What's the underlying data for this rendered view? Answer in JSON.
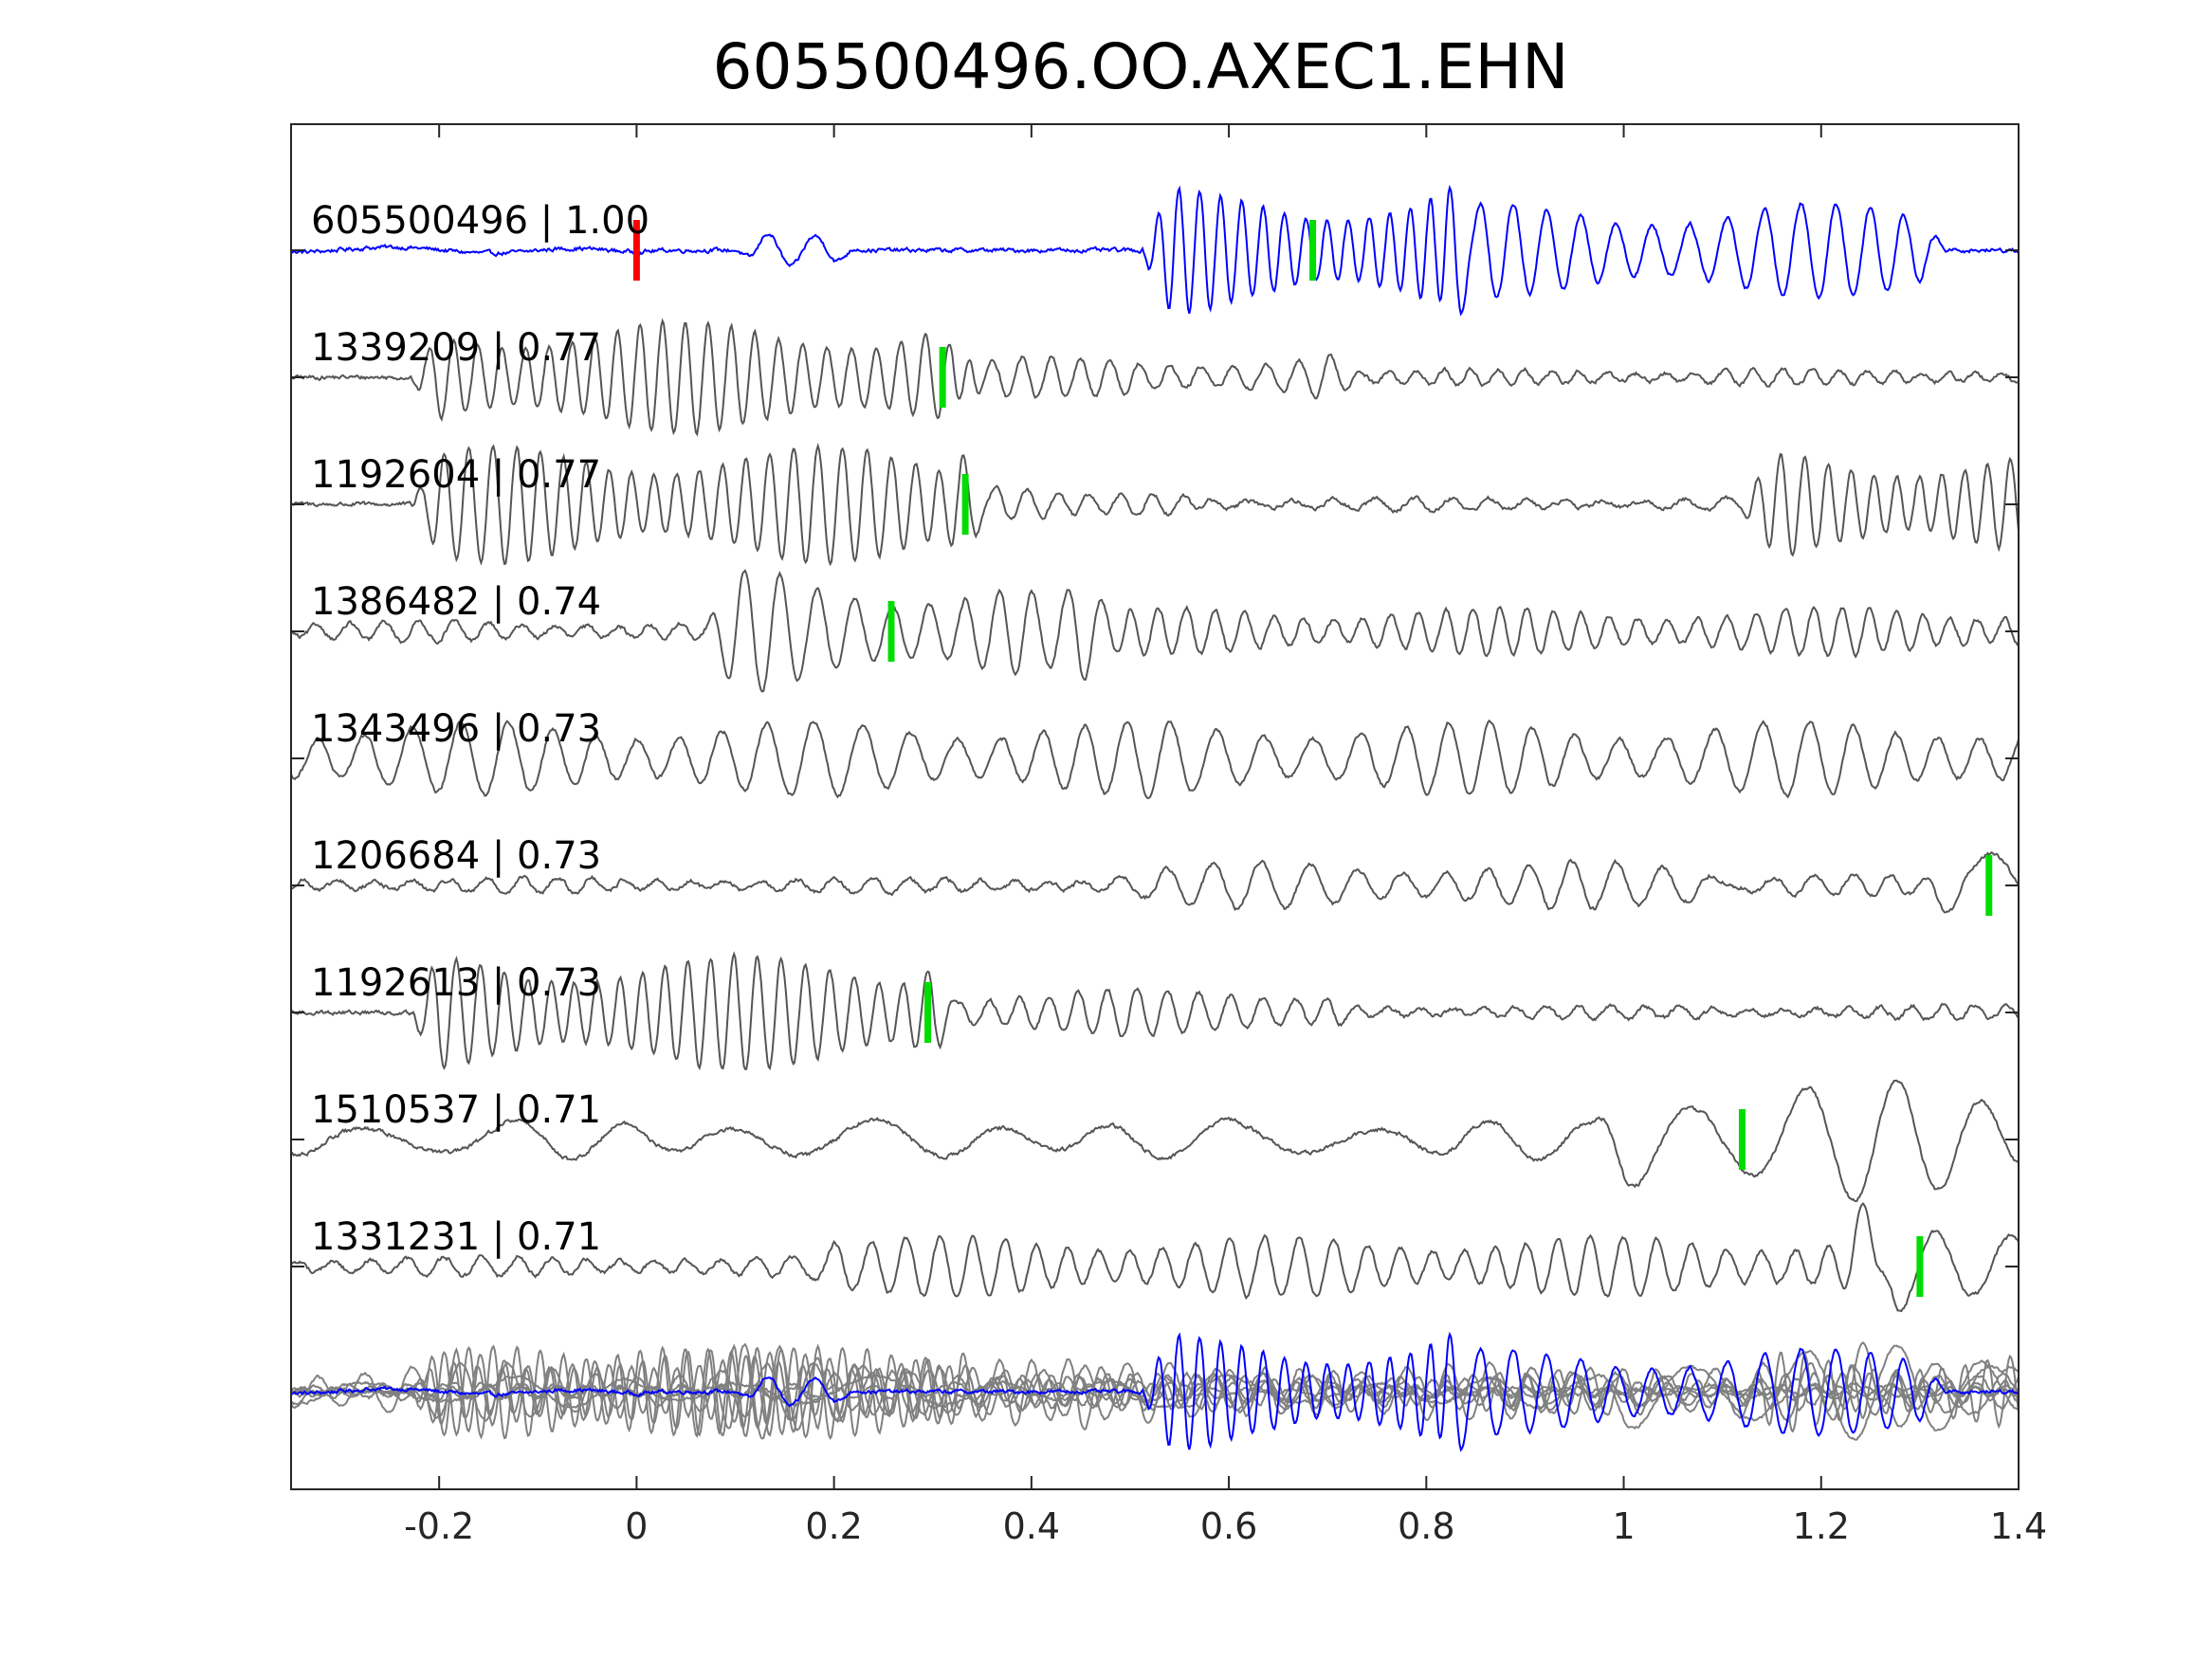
{
  "chart_data": {
    "type": "line",
    "title": "605500496.OO.AXEC1.EHN",
    "xlabel": "",
    "ylabel": "",
    "xlim": [
      -0.35,
      1.4
    ],
    "x_ticks": [
      -0.2,
      0,
      0.2,
      0.4,
      0.6,
      0.8,
      1,
      1.2,
      1.4
    ],
    "x_tick_labels": [
      "-0.2",
      "0",
      "0.2",
      "0.4",
      "0.6",
      "0.8",
      "1",
      "1.2",
      "1.4"
    ],
    "grid": false,
    "colors": {
      "template": "#0000ff",
      "match": "#555555",
      "stack": "#808080",
      "pick_p": "#ff0000",
      "pick_s": "#00dd00"
    },
    "series": [
      {
        "name": "605500496 | 1.00",
        "color": "#0000ff",
        "picks": [
          {
            "t": 0.0,
            "color": "#ff0000"
          },
          {
            "t": 0.685,
            "color": "#00dd00"
          }
        ],
        "segments": [
          [
            -0.35,
            0.0,
            0.05,
            0,
            6
          ],
          [
            0.13,
            0.2,
            0.25,
            50,
            22
          ],
          [
            0.54,
            0.82,
            0.9,
            350,
            48
          ],
          [
            0.84,
            1.3,
            0.7,
            1050,
            28
          ]
        ]
      },
      {
        "name": "1339209 | 0.77",
        "color": "#555555",
        "picks": [
          {
            "t": 0.31,
            "color": "#00dd00"
          }
        ],
        "segments": [
          [
            -0.2,
            0.32,
            0.82,
            200,
            42
          ],
          [
            0.31,
            0.7,
            0.3,
            1050,
            32
          ],
          [
            0.7,
            1.4,
            0.12,
            1500,
            35
          ]
        ]
      },
      {
        "name": "1192604 | 0.77",
        "color": "#555555",
        "picks": [
          {
            "t": 0.333,
            "color": "#00dd00"
          }
        ],
        "segments": [
          [
            -0.2,
            0.33,
            0.85,
            200,
            42
          ],
          [
            0.33,
            0.55,
            0.3,
            1050,
            30
          ],
          [
            0.55,
            1.15,
            0.1,
            1500,
            25
          ],
          [
            1.15,
            1.4,
            0.8,
            200,
            42
          ]
        ]
      },
      {
        "name": "1386482 | 0.74",
        "color": "#555555",
        "picks": [
          {
            "t": 0.258,
            "color": "#00dd00"
          }
        ],
        "segments": [
          [
            -0.35,
            0.15,
            0.15,
            900,
            30
          ],
          [
            0.1,
            0.45,
            0.75,
            550,
            28
          ],
          [
            0.4,
            1.4,
            0.35,
            1050,
            35
          ]
        ]
      },
      {
        "name": "1343496 | 0.73",
        "color": "#555555",
        "picks": [],
        "segments": [
          [
            -0.35,
            1.4,
            0.55,
            350,
            22
          ]
        ]
      },
      {
        "name": "1206684 | 0.73",
        "color": "#555555",
        "picks": [
          {
            "t": 1.37,
            "color": "#00dd00"
          }
        ],
        "segments": [
          [
            -0.35,
            0.5,
            0.12,
            1500,
            28
          ],
          [
            0.5,
            1.1,
            0.35,
            800,
            22
          ],
          [
            1.1,
            1.34,
            0.15,
            1000,
            25
          ],
          [
            1.34,
            1.4,
            0.9,
            650,
            8
          ]
        ]
      },
      {
        "name": "1192613 | 0.73",
        "color": "#555555",
        "picks": [
          {
            "t": 0.295,
            "color": "#00dd00"
          }
        ],
        "segments": [
          [
            -0.2,
            0.3,
            0.85,
            200,
            42
          ],
          [
            0.3,
            0.7,
            0.35,
            1050,
            32
          ],
          [
            0.7,
            1.4,
            0.1,
            1500,
            30
          ]
        ]
      },
      {
        "name": "1510537 | 0.71",
        "color": "#555555",
        "picks": [
          {
            "t": 1.12,
            "color": "#00dd00"
          }
        ],
        "segments": [
          [
            -0.35,
            1.0,
            0.3,
            200,
            8
          ],
          [
            1.0,
            1.4,
            0.9,
            200,
            10
          ]
        ]
      },
      {
        "name": "1331231 | 0.71",
        "color": "#555555",
        "picks": [
          {
            "t": 1.3,
            "color": "#00dd00"
          }
        ],
        "segments": [
          [
            -0.35,
            0.2,
            0.15,
            1050,
            28
          ],
          [
            0.2,
            1.25,
            0.45,
            1000,
            30
          ],
          [
            1.25,
            1.4,
            0.85,
            450,
            12
          ]
        ]
      }
    ],
    "stack": {
      "overlay_of": "all traces",
      "template_color": "#0000ff",
      "others_color": "#808080"
    }
  }
}
